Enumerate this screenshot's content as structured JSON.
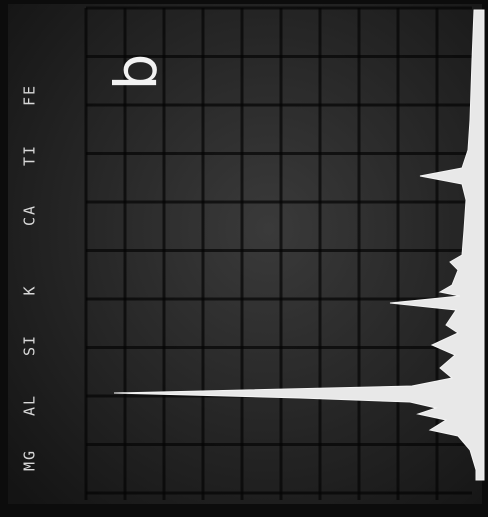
{
  "panel_label": "b",
  "element_labels": [
    "MG",
    "AL",
    "SI",
    "K",
    "CA",
    "TI",
    "FE"
  ]
}
